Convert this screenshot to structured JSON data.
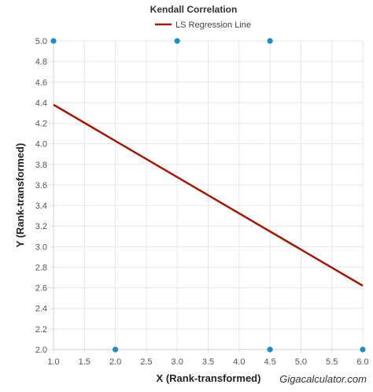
{
  "chart_data": {
    "type": "scatter",
    "title": "Kendall Correlation",
    "xlabel": "X (Rank-transformed)",
    "ylabel": "Y (Rank-transformed)",
    "xlim": [
      1.0,
      6.0
    ],
    "ylim": [
      2.0,
      5.0
    ],
    "x_ticks": [
      "1.0",
      "1.5",
      "2.0",
      "2.5",
      "3.0",
      "3.5",
      "4.0",
      "4.5",
      "5.0",
      "5.5",
      "6.0"
    ],
    "y_ticks": [
      "2.0",
      "2.2",
      "2.4",
      "2.6",
      "2.8",
      "3.0",
      "3.2",
      "3.4",
      "3.6",
      "3.8",
      "4.0",
      "4.2",
      "4.4",
      "4.6",
      "4.8",
      "5.0"
    ],
    "grid": true,
    "legend_position": "top",
    "points": [
      {
        "x": 1.0,
        "y": 5.0
      },
      {
        "x": 3.0,
        "y": 5.0
      },
      {
        "x": 4.5,
        "y": 5.0
      },
      {
        "x": 2.0,
        "y": 2.0
      },
      {
        "x": 4.5,
        "y": 2.0
      },
      {
        "x": 6.0,
        "y": 2.0
      }
    ],
    "point_color": "#1a8fc0",
    "series": [
      {
        "name": "LS Regression Line",
        "type": "line",
        "color": "#a11a0a",
        "x": [
          1.0,
          6.0
        ],
        "y": [
          4.38,
          2.62
        ]
      }
    ],
    "watermark": "Gigacalculator.com"
  }
}
